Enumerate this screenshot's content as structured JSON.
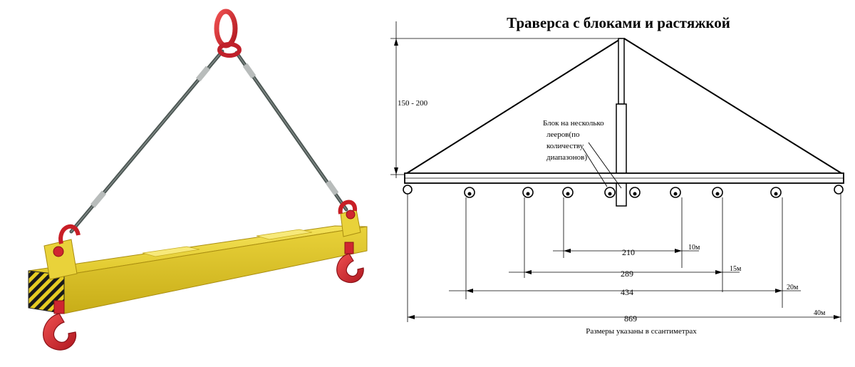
{
  "diagram": {
    "title": "Траверса с блоками и растяжкой",
    "height_label": "150 - 200",
    "block_note": [
      "Блок на несколько",
      "лееров(по",
      "количеству",
      "диапазонов)"
    ],
    "dimensions": [
      {
        "value": "210",
        "tag": "10м"
      },
      {
        "value": "289",
        "tag": "15м"
      },
      {
        "value": "434",
        "tag": "20м"
      },
      {
        "value": "869",
        "tag": "40м"
      }
    ],
    "footnote": "Размеры указаны в ссантиметрах"
  },
  "colors": {
    "beam": "#e3cc2a",
    "beam_shadow": "#b59a12",
    "rigging": "#d3232a",
    "cable": "#4b5552"
  }
}
